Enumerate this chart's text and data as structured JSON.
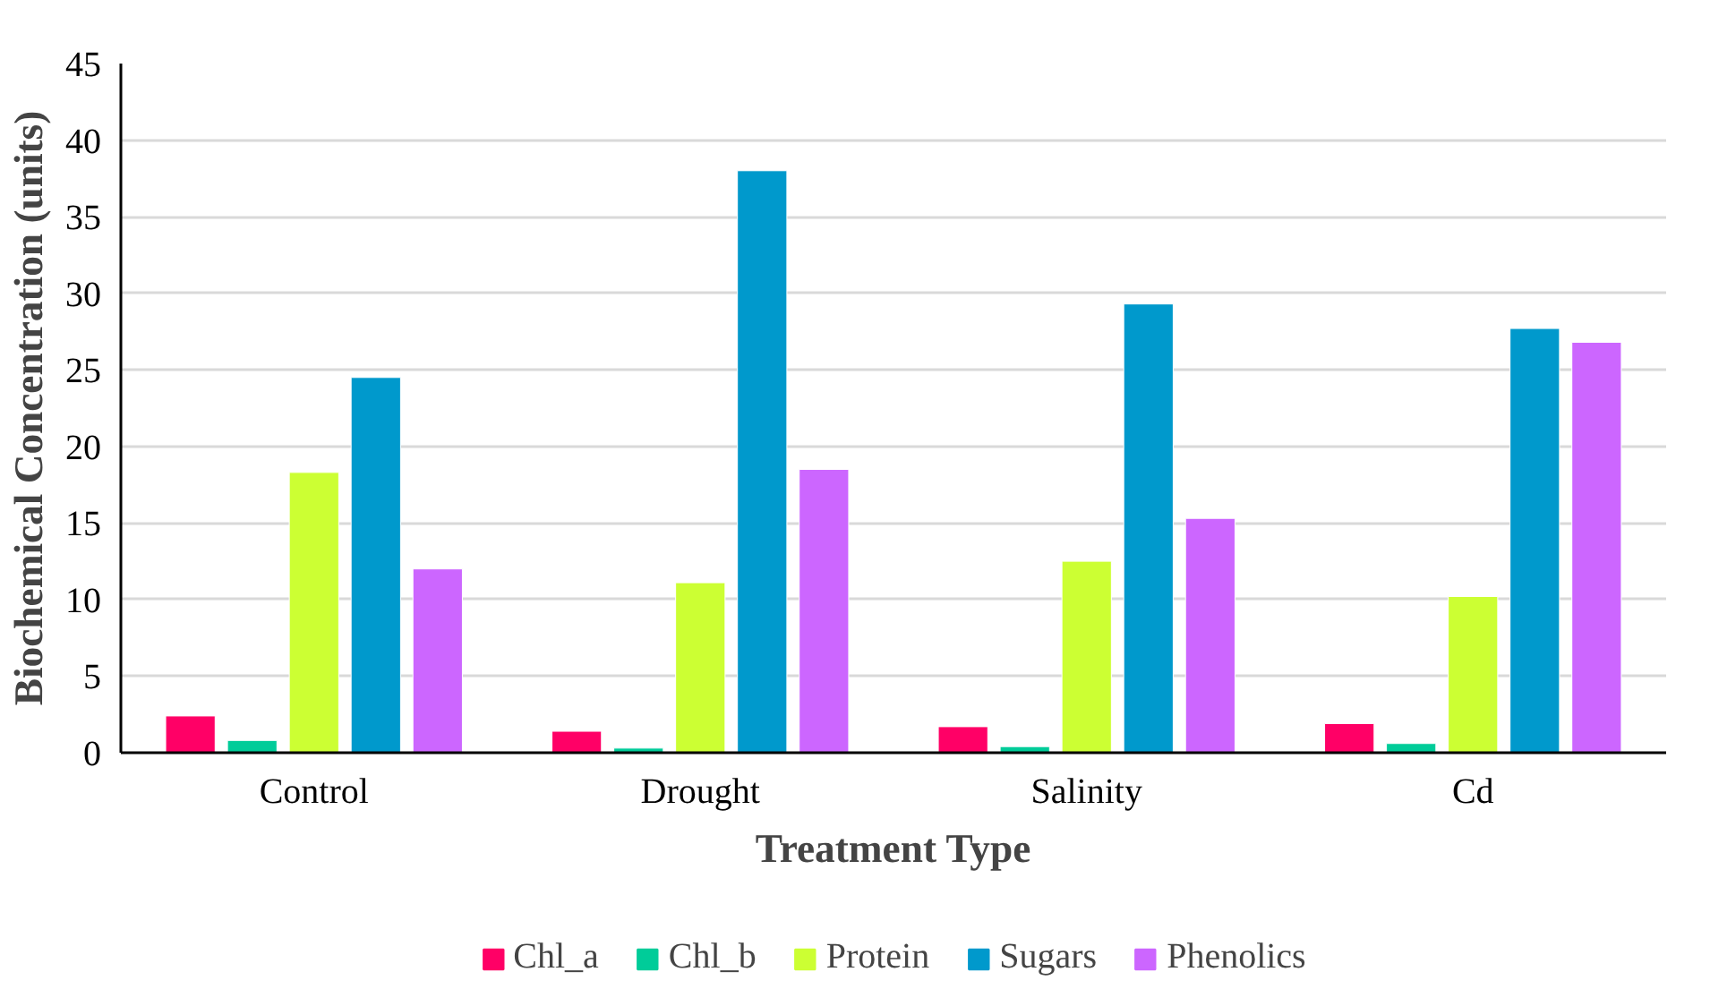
{
  "chart_data": {
    "type": "bar",
    "xlabel": "Treatment Type",
    "ylabel": "Biochemical Concentration (units)",
    "categories": [
      "Control",
      "Drought",
      "Salinity",
      "Cd"
    ],
    "series": [
      {
        "name": "Chl_a",
        "color": "#ff0066",
        "values": [
          2.4,
          1.4,
          1.7,
          1.9
        ]
      },
      {
        "name": "Chl_b",
        "color": "#00cc99",
        "values": [
          0.8,
          0.3,
          0.4,
          0.6
        ]
      },
      {
        "name": "Protein",
        "color": "#ccff33",
        "values": [
          18.3,
          11.1,
          12.5,
          10.2
        ]
      },
      {
        "name": "Sugars",
        "color": "#0099cc",
        "values": [
          24.5,
          38.0,
          29.3,
          27.7
        ]
      },
      {
        "name": "Phenolics",
        "color": "#cc66ff",
        "values": [
          12.0,
          18.5,
          15.3,
          26.8
        ]
      }
    ],
    "ylim": [
      0,
      45
    ],
    "yticks": [
      0,
      5,
      10,
      15,
      20,
      25,
      30,
      35,
      40,
      45
    ],
    "grid": "y",
    "legend": "bottom"
  }
}
